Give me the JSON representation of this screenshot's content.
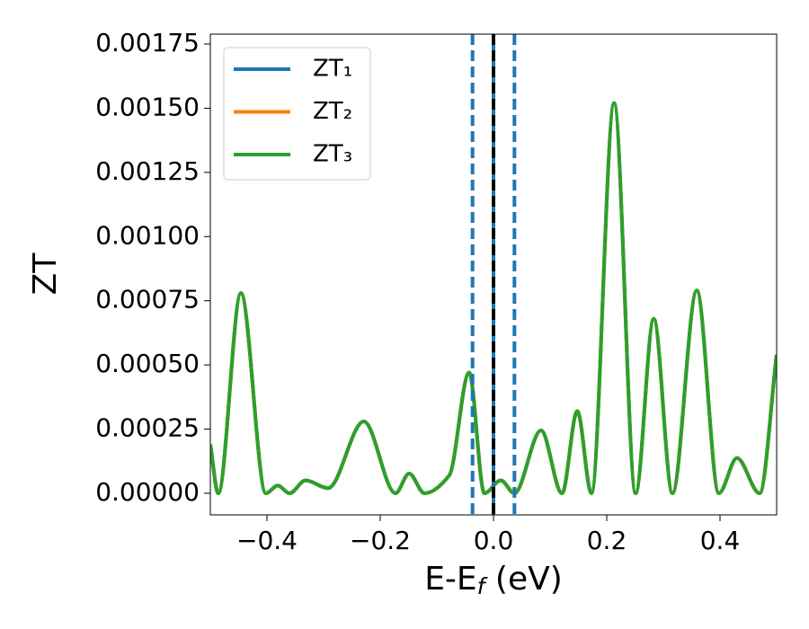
{
  "chart_data": {
    "type": "line",
    "xlabel": {
      "main": "E-E",
      "sub": "f",
      "tail": " (eV)"
    },
    "ylabel": "ZT",
    "x": [
      -0.5,
      -0.486,
      -0.446,
      -0.402,
      -0.381,
      -0.36,
      -0.332,
      -0.292,
      -0.229,
      -0.173,
      -0.149,
      -0.122,
      -0.078,
      -0.043,
      -0.016,
      0.013,
      0.037,
      0.084,
      0.121,
      0.148,
      0.173,
      0.213,
      0.251,
      0.283,
      0.316,
      0.359,
      0.398,
      0.43,
      0.47,
      0.5
    ],
    "series": [
      {
        "name": "ZT₁",
        "color": "#1f77b4",
        "values": [
          0.00019,
          0.0,
          0.00078,
          0.0,
          3e-05,
          0.0,
          5e-05,
          2e-05,
          0.00028,
          0.0,
          7.7e-05,
          0.0,
          7e-05,
          0.00047,
          0.0,
          5e-05,
          0.0,
          0.000245,
          0.0,
          0.00032,
          0.0,
          0.00152,
          0.0,
          0.00068,
          0.0,
          0.00079,
          0.0,
          0.000137,
          0.0,
          0.00054
        ]
      },
      {
        "name": "ZT₂",
        "color": "#ff7f0e",
        "values": [
          0.00019,
          0.0,
          0.00078,
          0.0,
          3e-05,
          0.0,
          5e-05,
          2e-05,
          0.00028,
          0.0,
          7.7e-05,
          0.0,
          7e-05,
          0.00047,
          0.0,
          5e-05,
          0.0,
          0.000245,
          0.0,
          0.00032,
          0.0,
          0.00152,
          0.0,
          0.00068,
          0.0,
          0.00079,
          0.0,
          0.000137,
          0.0,
          0.00054
        ]
      },
      {
        "name": "ZT₃",
        "color": "#2ca02c",
        "values": [
          0.00019,
          0.0,
          0.00078,
          0.0,
          3e-05,
          0.0,
          5e-05,
          2e-05,
          0.00028,
          0.0,
          7.7e-05,
          0.0,
          7e-05,
          0.00047,
          0.0,
          5e-05,
          0.0,
          0.000245,
          0.0,
          0.00032,
          0.0,
          0.00152,
          0.0,
          0.00068,
          0.0,
          0.00079,
          0.0,
          0.000137,
          0.0,
          0.00054
        ]
      }
    ],
    "vlines": [
      {
        "x": -0.037,
        "color": "#1f77b4",
        "dashed": true
      },
      {
        "x": 0.037,
        "color": "#1f77b4",
        "dashed": true
      },
      {
        "x": 0,
        "color": "#1f77b4",
        "dashed": false
      },
      {
        "x": 0,
        "color": "#000000",
        "dashed": true
      }
    ],
    "xlim": [
      -0.5,
      0.5
    ],
    "xticks": [
      {
        "value": -0.4,
        "label": "−0.4"
      },
      {
        "value": -0.2,
        "label": "−0.2"
      },
      {
        "value": 0,
        "label": "0.0"
      },
      {
        "value": 0.2,
        "label": "0.2"
      },
      {
        "value": 0.4,
        "label": "0.4"
      }
    ],
    "ylim": [
      -8.42e-05,
      0.0017886
    ],
    "yticks": [
      {
        "value": 0,
        "label": "0.00000"
      },
      {
        "value": 0.00025,
        "label": "0.00025"
      },
      {
        "value": 0.0005,
        "label": "0.00050"
      },
      {
        "value": 0.00075,
        "label": "0.00075"
      },
      {
        "value": 0.001,
        "label": "0.00100"
      },
      {
        "value": 0.00125,
        "label": "0.00125"
      },
      {
        "value": 0.0015,
        "label": "0.00150"
      },
      {
        "value": 0.00175,
        "label": "0.00175"
      }
    ],
    "legend": "upper left"
  }
}
